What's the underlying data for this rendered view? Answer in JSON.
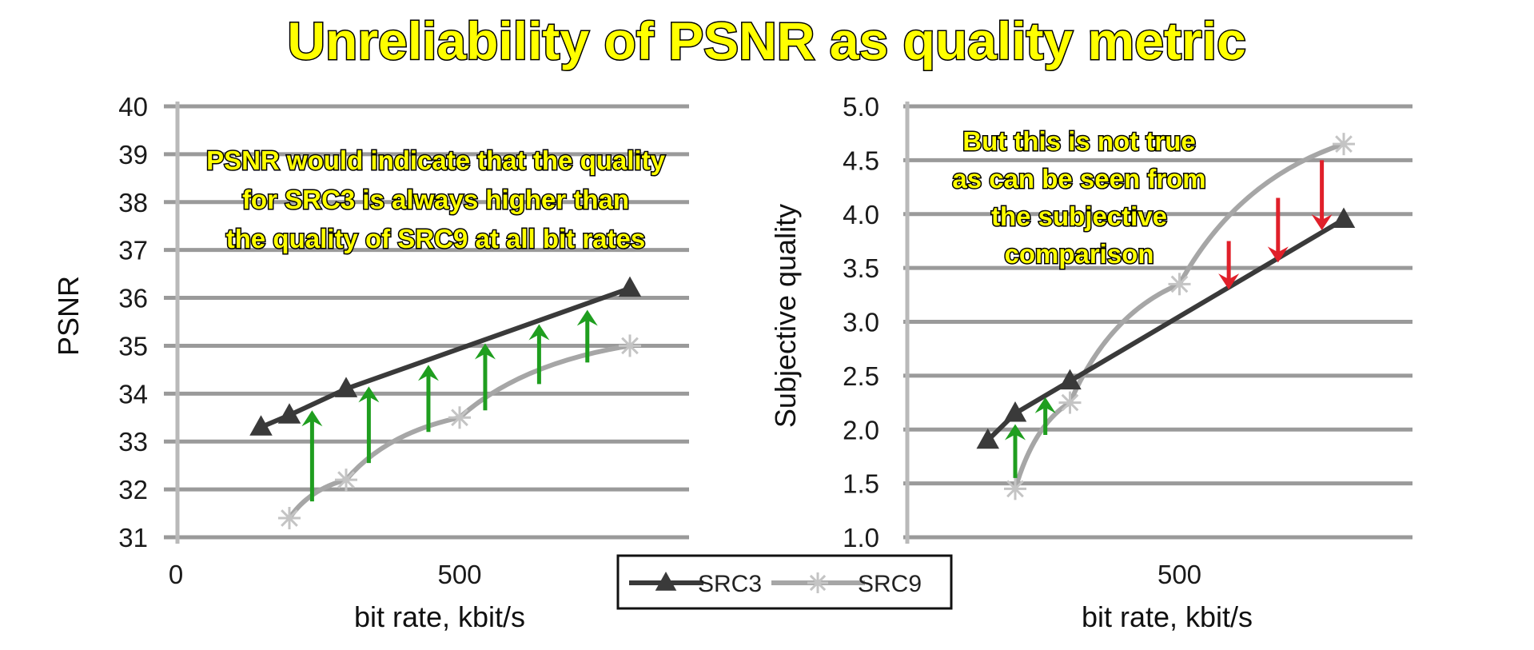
{
  "title": "Unreliability of PSNR as quality metric",
  "legend": {
    "items": [
      {
        "label": "SRC3"
      },
      {
        "label": "SRC9"
      }
    ]
  },
  "colors": {
    "src3": "#3a3a3a",
    "src9": "#a6a6a6",
    "up_arrow": "#1f9e1f",
    "down_arrow": "#e0202a",
    "title_fill": "#ffff00"
  },
  "chart_data": [
    {
      "type": "line",
      "title": "",
      "xlabel": "bit rate, kbit/s",
      "ylabel": "PSNR",
      "x_ticks": [
        "0",
        "500"
      ],
      "y_ticks": [
        "31",
        "32",
        "33",
        "34",
        "35",
        "36",
        "37",
        "38",
        "39",
        "40"
      ],
      "xlim": [
        0,
        900
      ],
      "ylim": [
        31,
        40
      ],
      "grid": "horizontal",
      "series": [
        {
          "name": "SRC3",
          "marker": "triangle",
          "x": [
            150,
            200,
            300,
            800
          ],
          "y": [
            33.3,
            33.55,
            34.1,
            36.2
          ]
        },
        {
          "name": "SRC9",
          "marker": "star",
          "x": [
            200,
            300,
            500,
            800
          ],
          "y": [
            31.4,
            32.2,
            33.5,
            35.0
          ]
        }
      ],
      "annotation": {
        "lines": [
          "PSNR would indicate that the quality",
          "for SRC3 is always higher than",
          "the quality of SRC9 at all bit rates"
        ]
      },
      "arrows": [
        {
          "x": 240,
          "from": 31.75,
          "to": 33.65,
          "direction": "up"
        },
        {
          "x": 340,
          "from": 32.55,
          "to": 34.15,
          "direction": "up"
        },
        {
          "x": 445,
          "from": 33.2,
          "to": 34.6,
          "direction": "up"
        },
        {
          "x": 545,
          "from": 33.65,
          "to": 35.05,
          "direction": "up"
        },
        {
          "x": 640,
          "from": 34.2,
          "to": 35.45,
          "direction": "up"
        },
        {
          "x": 725,
          "from": 34.65,
          "to": 35.75,
          "direction": "up"
        }
      ]
    },
    {
      "type": "line",
      "title": "",
      "xlabel": "bit rate, kbit/s",
      "ylabel": "Subjective quality",
      "x_ticks": [
        "500"
      ],
      "y_ticks": [
        "1.0",
        "1.5",
        "2.0",
        "2.5",
        "3.0",
        "3.5",
        "4.0",
        "4.5",
        "5.0"
      ],
      "xlim": [
        0,
        900
      ],
      "ylim": [
        1.0,
        5.0
      ],
      "grid": "horizontal",
      "series": [
        {
          "name": "SRC3",
          "marker": "triangle",
          "x": [
            150,
            200,
            300,
            800
          ],
          "y": [
            1.9,
            2.15,
            2.45,
            3.95
          ]
        },
        {
          "name": "SRC9",
          "marker": "star",
          "x": [
            200,
            300,
            500,
            800
          ],
          "y": [
            1.45,
            2.25,
            3.35,
            4.65
          ]
        }
      ],
      "annotation": {
        "lines": [
          "But this is not true",
          "as can be seen from",
          "the subjective",
          "comparison"
        ]
      },
      "arrows": [
        {
          "x": 200,
          "from": 1.55,
          "to": 2.05,
          "direction": "up"
        },
        {
          "x": 255,
          "from": 1.95,
          "to": 2.3,
          "direction": "up"
        },
        {
          "x": 590,
          "from": 3.75,
          "to": 3.3,
          "direction": "down"
        },
        {
          "x": 680,
          "from": 4.15,
          "to": 3.55,
          "direction": "down"
        },
        {
          "x": 760,
          "from": 4.5,
          "to": 3.85,
          "direction": "down"
        }
      ]
    }
  ]
}
